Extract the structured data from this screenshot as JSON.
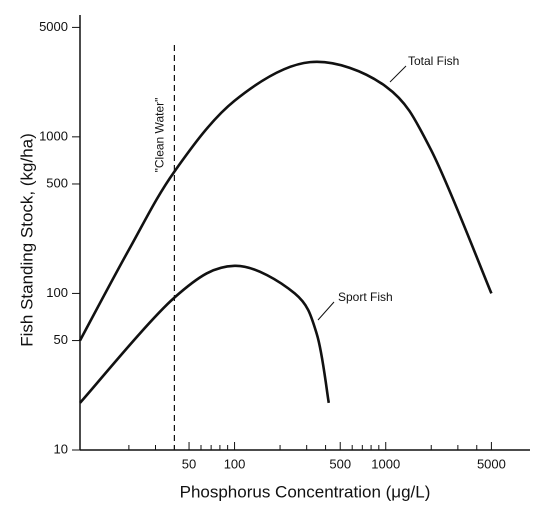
{
  "chart_data": {
    "type": "line",
    "x_label": "Phosphorus Concentration (μg/L)",
    "y_label": "Fish Standing Stock, (kg/ha)",
    "xscale": "log",
    "yscale": "log",
    "xlim": [
      9.5,
      9000
    ],
    "ylim": [
      10,
      6000
    ],
    "xticks": [
      50,
      100,
      500,
      1000,
      5000
    ],
    "xminorticks": [
      20,
      30,
      40,
      60,
      70,
      80,
      90,
      200,
      300,
      400,
      600,
      700,
      800,
      900,
      2000,
      3000,
      4000
    ],
    "yticks": [
      10,
      50,
      100,
      500,
      1000,
      5000
    ],
    "series": [
      {
        "name": "Total Fish",
        "color": "#111111",
        "x": [
          9.5,
          20,
          40,
          100,
          316,
          1000,
          2000,
          5000
        ],
        "values": [
          50,
          190,
          600,
          1700,
          3000,
          2100,
          820,
          100
        ]
      },
      {
        "name": "Sport Fish",
        "color": "#111111",
        "x": [
          9.5,
          40,
          100,
          250,
          350,
          420
        ],
        "values": [
          20,
          94,
          150,
          100,
          55,
          20
        ]
      }
    ],
    "vlines": [
      {
        "x": 40,
        "label": "\"Clean Water\""
      }
    ]
  }
}
